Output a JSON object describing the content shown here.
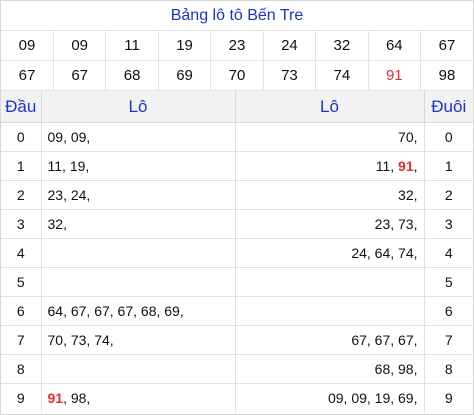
{
  "title": "Bảng lô tô Bến Tre",
  "numbers_row1": [
    "09",
    "09",
    "11",
    "19",
    "23",
    "24",
    "32",
    "64",
    "67"
  ],
  "numbers_row2": [
    "67",
    "67",
    "68",
    "69",
    "70",
    "73",
    "74",
    "91",
    "98"
  ],
  "highlight_color": "#e03030",
  "header": {
    "dau": "Đầu",
    "lo1": "Lô",
    "lo2": "Lô",
    "duoi": "Đuôi"
  },
  "rows": [
    {
      "dau": "0",
      "lo1": [
        [
          "09, 09,",
          false
        ]
      ],
      "lo2": [
        [
          "70,",
          false
        ]
      ],
      "duoi": "0"
    },
    {
      "dau": "1",
      "lo1": [
        [
          "11, 19,",
          false
        ]
      ],
      "lo2": [
        [
          "11, ",
          false
        ],
        [
          "91",
          true
        ],
        [
          ",",
          false
        ]
      ],
      "duoi": "1"
    },
    {
      "dau": "2",
      "lo1": [
        [
          "23, 24,",
          false
        ]
      ],
      "lo2": [
        [
          "32,",
          false
        ]
      ],
      "duoi": "2"
    },
    {
      "dau": "3",
      "lo1": [
        [
          "32,",
          false
        ]
      ],
      "lo2": [
        [
          "23, 73,",
          false
        ]
      ],
      "duoi": "3"
    },
    {
      "dau": "4",
      "lo1": [],
      "lo2": [
        [
          "24, 64, 74,",
          false
        ]
      ],
      "duoi": "4"
    },
    {
      "dau": "5",
      "lo1": [],
      "lo2": [],
      "duoi": "5"
    },
    {
      "dau": "6",
      "lo1": [
        [
          "64, 67, 67, 67, 68, 69,",
          false
        ]
      ],
      "lo2": [],
      "duoi": "6"
    },
    {
      "dau": "7",
      "lo1": [
        [
          "70, 73, 74,",
          false
        ]
      ],
      "lo2": [
        [
          "67, 67, 67,",
          false
        ]
      ],
      "duoi": "7"
    },
    {
      "dau": "8",
      "lo1": [],
      "lo2": [
        [
          "68, 98,",
          false
        ]
      ],
      "duoi": "8"
    },
    {
      "dau": "9",
      "lo1": [
        [
          "91",
          true
        ],
        [
          ", 98,",
          false
        ]
      ],
      "lo2": [
        [
          "09, 09, 19, 69,",
          false
        ]
      ],
      "duoi": "9"
    }
  ]
}
